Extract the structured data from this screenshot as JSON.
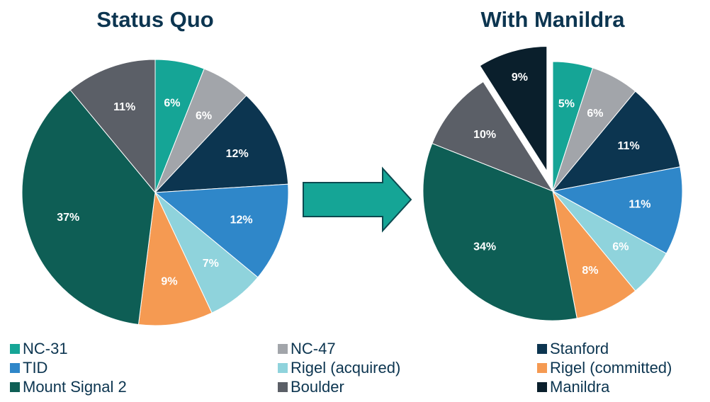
{
  "chart_data": [
    {
      "type": "pie",
      "title": "Status Quo",
      "categories": [
        "NC-31",
        "NC-47",
        "Stanford",
        "TID",
        "Rigel (acquired)",
        "Rigel (committed)",
        "Mount Signal 2",
        "Boulder"
      ],
      "values": [
        6,
        6,
        12,
        12,
        7,
        9,
        37,
        11
      ],
      "value_labels": [
        "6%",
        "6%",
        "12%",
        "12%",
        "7%",
        "9%",
        "37%",
        "11%"
      ],
      "colors": [
        "#15a596",
        "#a2a5aa",
        "#0c3550",
        "#2f87c9",
        "#8fd3dc",
        "#f59a52",
        "#0e5e55",
        "#5b5f67"
      ]
    },
    {
      "type": "pie",
      "title": "With Manildra",
      "categories": [
        "NC-31",
        "NC-47",
        "Stanford",
        "TID",
        "Rigel (acquired)",
        "Rigel (committed)",
        "Mount Signal 2",
        "Boulder",
        "Manildra"
      ],
      "values": [
        5,
        6,
        11,
        11,
        6,
        8,
        34,
        10,
        9
      ],
      "value_labels": [
        "5%",
        "6%",
        "11%",
        "11%",
        "6%",
        "8%",
        "34%",
        "10%",
        "9%"
      ],
      "colors": [
        "#15a596",
        "#a2a5aa",
        "#0c3550",
        "#2f87c9",
        "#8fd3dc",
        "#f59a52",
        "#0e5e55",
        "#5b5f67",
        "#0a1f2c"
      ],
      "exploded": [
        "Manildra"
      ]
    }
  ]
}
